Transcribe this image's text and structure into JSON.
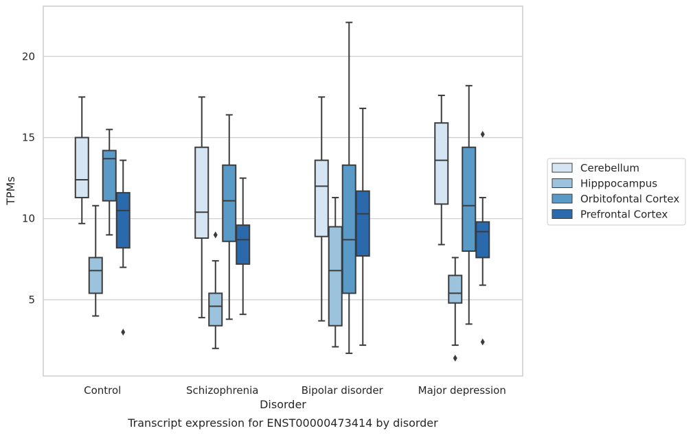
{
  "chart_data": {
    "type": "box",
    "title": "",
    "caption": "Transcript expression for ENST00000473414 by disorder",
    "xlabel": "Disorder",
    "ylabel": "TPMs",
    "ylim": [
      0.3,
      23.1
    ],
    "yticks": [
      5,
      10,
      15,
      20
    ],
    "grid": "horizontal",
    "legend_position": "right",
    "categories": [
      "Control",
      "Schizophrenia",
      "Bipolar disorder",
      "Major depression"
    ],
    "series": [
      {
        "name": "Cerebellum",
        "color": "#d6e5f3",
        "boxes": [
          {
            "whisker_low": 9.7,
            "q1": 11.3,
            "median": 12.4,
            "q3": 15.0,
            "whisker_high": 17.5,
            "outliers": []
          },
          {
            "whisker_low": 3.9,
            "q1": 8.8,
            "median": 10.4,
            "q3": 14.4,
            "whisker_high": 17.5,
            "outliers": []
          },
          {
            "whisker_low": 3.7,
            "q1": 8.9,
            "median": 12.0,
            "q3": 13.6,
            "whisker_high": 17.5,
            "outliers": []
          },
          {
            "whisker_low": 8.4,
            "q1": 10.9,
            "median": 13.6,
            "q3": 15.9,
            "whisker_high": 17.6,
            "outliers": []
          }
        ]
      },
      {
        "name": "Hipppocampus",
        "color": "#9bc3de",
        "boxes": [
          {
            "whisker_low": 4.0,
            "q1": 5.4,
            "median": 6.8,
            "q3": 7.6,
            "whisker_high": 10.8,
            "outliers": []
          },
          {
            "whisker_low": 2.0,
            "q1": 3.4,
            "median": 4.6,
            "q3": 5.4,
            "whisker_high": 7.4,
            "outliers": [
              9.0
            ]
          },
          {
            "whisker_low": 2.1,
            "q1": 3.4,
            "median": 6.8,
            "q3": 9.5,
            "whisker_high": 11.3,
            "outliers": []
          },
          {
            "whisker_low": 2.2,
            "q1": 4.8,
            "median": 5.4,
            "q3": 6.5,
            "whisker_high": 7.6,
            "outliers": [
              1.4
            ]
          }
        ]
      },
      {
        "name": "Orbitofontal Cortex",
        "color": "#5a9ac6",
        "boxes": [
          {
            "whisker_low": 9.0,
            "q1": 11.1,
            "median": 13.7,
            "q3": 14.2,
            "whisker_high": 15.5,
            "outliers": []
          },
          {
            "whisker_low": 3.8,
            "q1": 8.6,
            "median": 11.1,
            "q3": 13.3,
            "whisker_high": 16.4,
            "outliers": []
          },
          {
            "whisker_low": 1.7,
            "q1": 5.4,
            "median": 8.7,
            "q3": 13.3,
            "whisker_high": 22.1,
            "outliers": []
          },
          {
            "whisker_low": 3.5,
            "q1": 8.0,
            "median": 10.8,
            "q3": 14.4,
            "whisker_high": 18.2,
            "outliers": []
          }
        ]
      },
      {
        "name": "Prefrontal Cortex",
        "color": "#2a6aac",
        "boxes": [
          {
            "whisker_low": 7.0,
            "q1": 8.2,
            "median": 10.5,
            "q3": 11.6,
            "whisker_high": 13.6,
            "outliers": [
              3.0
            ]
          },
          {
            "whisker_low": 4.1,
            "q1": 7.2,
            "median": 8.7,
            "q3": 9.6,
            "whisker_high": 12.5,
            "outliers": []
          },
          {
            "whisker_low": 2.2,
            "q1": 7.7,
            "median": 10.3,
            "q3": 11.7,
            "whisker_high": 16.8,
            "outliers": []
          },
          {
            "whisker_low": 5.9,
            "q1": 7.6,
            "median": 9.2,
            "q3": 9.8,
            "whisker_high": 11.3,
            "outliers": [
              15.2,
              2.4
            ]
          }
        ]
      }
    ]
  }
}
